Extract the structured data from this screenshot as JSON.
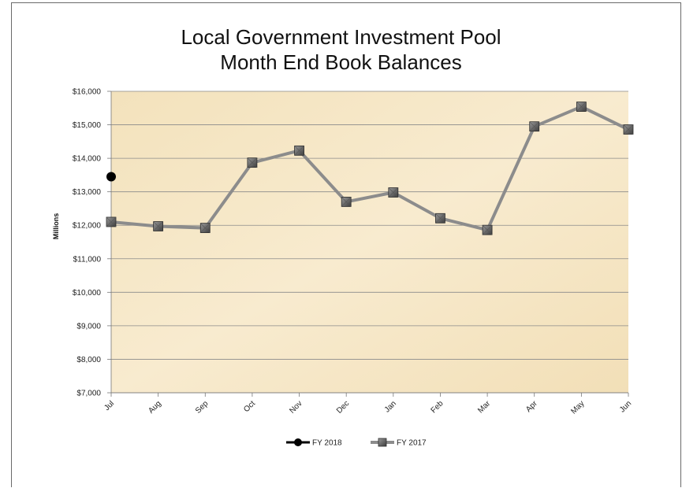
{
  "chart_data": {
    "type": "line",
    "title": "Local Government Investment Pool",
    "subtitle": "Month End Book Balances",
    "xlabel": "",
    "ylabel": "Millions",
    "categories": [
      "Jul",
      "Aug",
      "Sep",
      "Oct",
      "Nov",
      "Dec",
      "Jan",
      "Feb",
      "Mar",
      "Apr",
      "May",
      "Jun"
    ],
    "ylim": [
      7000,
      16000
    ],
    "yticks": [
      7000,
      8000,
      9000,
      10000,
      11000,
      12000,
      13000,
      14000,
      15000,
      16000
    ],
    "ytick_labels": [
      "$7,000",
      "$8,000",
      "$9,000",
      "$10,000",
      "$11,000",
      "$12,000",
      "$13,000",
      "$14,000",
      "$15,000",
      "$16,000"
    ],
    "grid": true,
    "legend_position": "bottom",
    "series": [
      {
        "name": "FY 2018",
        "values": [
          13450,
          null,
          null,
          null,
          null,
          null,
          null,
          null,
          null,
          null,
          null,
          null
        ],
        "color": "#000000",
        "marker": "circle"
      },
      {
        "name": "FY 2017",
        "values": [
          12100,
          11970,
          11920,
          13870,
          14230,
          12700,
          12980,
          12210,
          11860,
          14950,
          15540,
          14860
        ],
        "color": "#8c8c8c",
        "marker": "square"
      }
    ],
    "plot_background": "#f6e7c4"
  }
}
